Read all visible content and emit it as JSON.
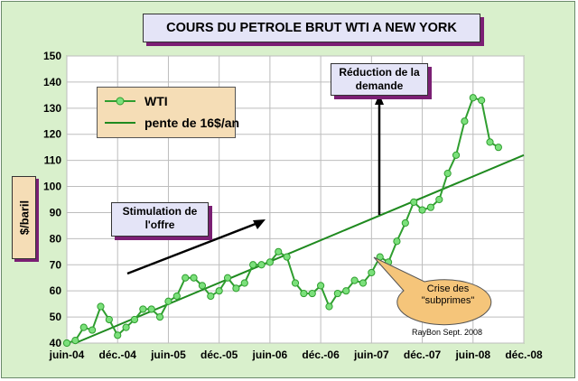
{
  "chart_data": {
    "type": "line",
    "title": "COURS DU PETROLE BRUT WTI A NEW YORK",
    "ylabel": "$/baril",
    "ylim": [
      40,
      150
    ],
    "yticks": [
      40,
      50,
      60,
      70,
      80,
      90,
      100,
      110,
      120,
      130,
      140,
      150
    ],
    "xticks": [
      "juin-04",
      "déc.-04",
      "juin-05",
      "déc.-05",
      "juin-06",
      "déc.-06",
      "juin-07",
      "déc.-07",
      "juin-08",
      "déc.-08"
    ],
    "grid": true,
    "legend_position": "top-left",
    "series": [
      {
        "name": "WTI",
        "color": "#2f9e2f",
        "marker": "circle",
        "x": [
          "2004-06",
          "2004-07",
          "2004-08",
          "2004-09",
          "2004-10",
          "2004-11",
          "2004-12",
          "2005-01",
          "2005-02",
          "2005-03",
          "2005-04",
          "2005-05",
          "2005-06",
          "2005-07",
          "2005-08",
          "2005-09",
          "2005-10",
          "2005-11",
          "2005-12",
          "2006-01",
          "2006-02",
          "2006-03",
          "2006-04",
          "2006-05",
          "2006-06",
          "2006-07",
          "2006-08",
          "2006-09",
          "2006-10",
          "2006-11",
          "2006-12",
          "2007-01",
          "2007-02",
          "2007-03",
          "2007-04",
          "2007-05",
          "2007-06",
          "2007-07",
          "2007-08",
          "2007-09",
          "2007-10",
          "2007-11",
          "2007-12",
          "2008-01",
          "2008-02",
          "2008-03",
          "2008-04",
          "2008-05",
          "2008-06",
          "2008-07",
          "2008-08",
          "2008-09"
        ],
        "values": [
          40,
          41,
          46,
          45,
          54,
          49,
          43,
          46,
          49,
          53,
          53,
          50,
          56,
          58,
          65,
          65,
          62,
          58,
          60,
          65,
          61,
          63,
          70,
          70,
          71,
          75,
          73,
          63,
          59,
          59,
          62,
          54,
          59,
          60,
          64,
          63,
          67,
          73,
          71,
          79,
          86,
          94,
          91,
          92,
          95,
          105,
          112,
          125,
          134,
          133,
          117,
          115
        ]
      },
      {
        "name": "pente de 16$/an",
        "color": "#1f8a1f",
        "marker": "none",
        "x": [
          "2004-07",
          "2008-12"
        ],
        "values": [
          40,
          112
        ]
      }
    ],
    "annotations": [
      {
        "text": "Stimulation de l'offre",
        "arrow": "up-right"
      },
      {
        "text": "Réduction de la demande",
        "arrow": "up"
      },
      {
        "text": "Crise des \"subprimes\"",
        "arrow": "callout"
      }
    ]
  },
  "labels": {
    "title": "COURS DU PETROLE BRUT WTI A NEW YORK",
    "ylabel": "$/baril",
    "legend_wti": "WTI",
    "legend_slope": "pente de 16$/an",
    "annot_offre_1": "Stimulation de",
    "annot_offre_2": "l'offre",
    "annot_demande_1": "Réduction de la",
    "annot_demande_2": "demande",
    "annot_crise_1": "Crise des",
    "annot_crise_2": "\"subprimes\"",
    "credit": "RayBon Sept. 2008"
  }
}
